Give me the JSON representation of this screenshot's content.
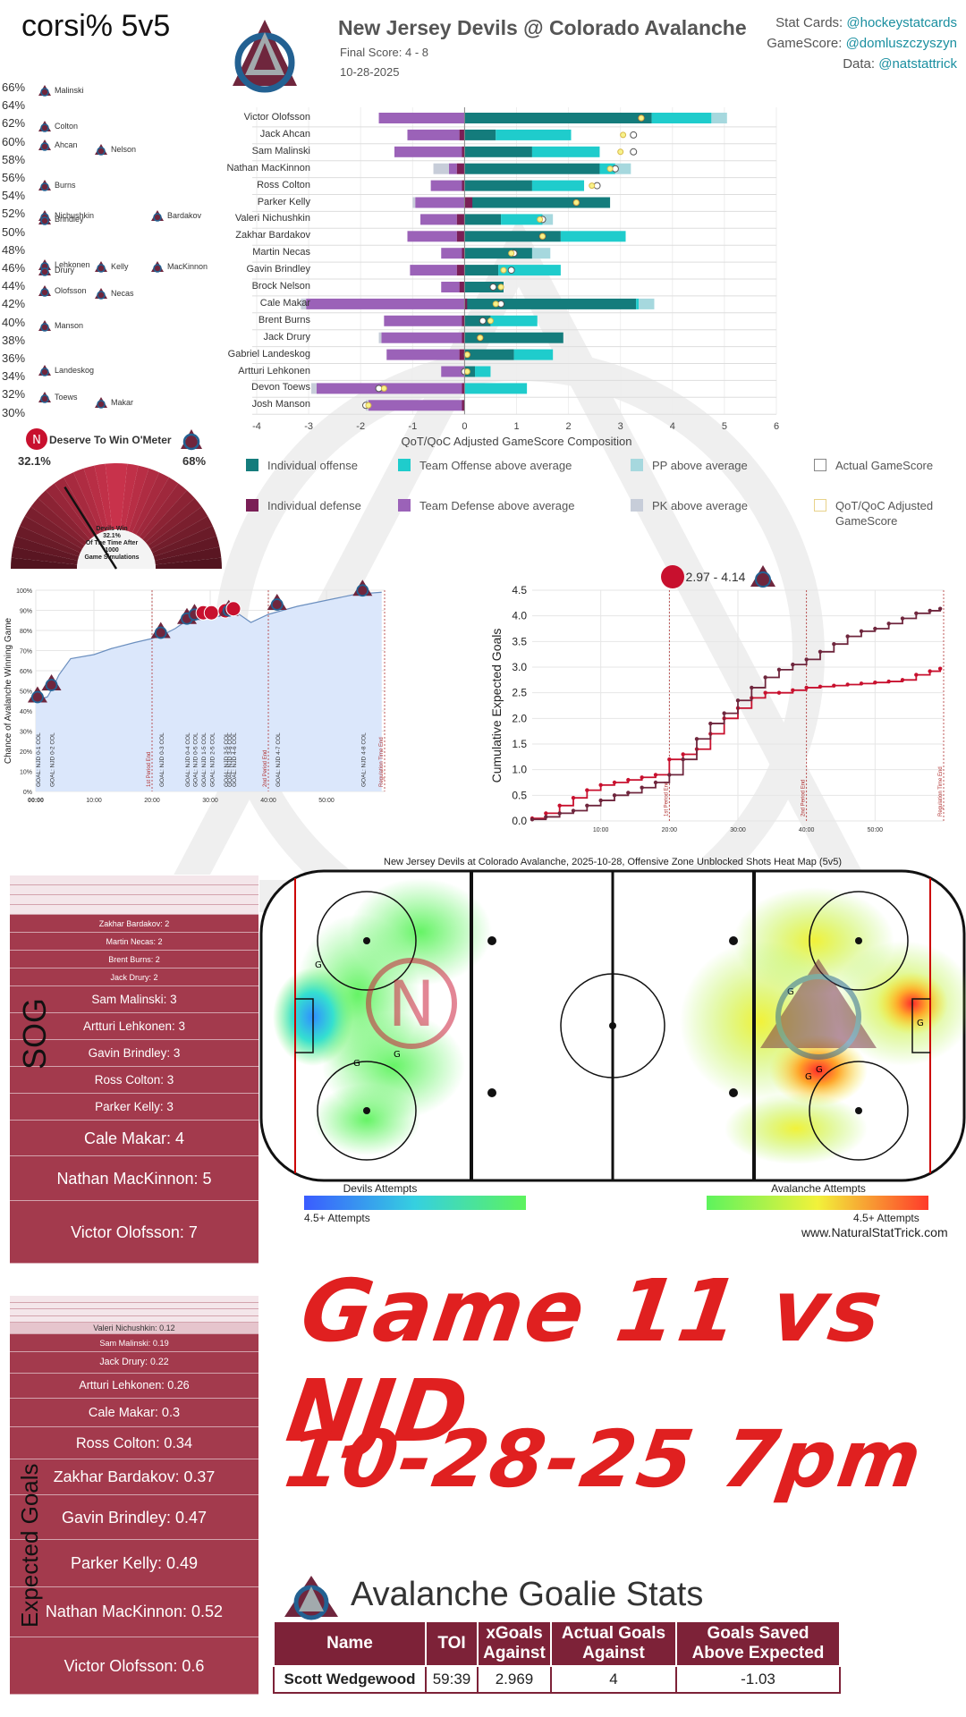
{
  "header": {
    "corsi_title": "corsi% 5v5",
    "game_title": "New Jersey Devils @ Colorado Avalanche",
    "final_score": "Final Score: 4 - 8",
    "date": "10-28-2025",
    "credits": [
      {
        "label": "Stat Cards: ",
        "handle": "@hockeystatcards"
      },
      {
        "label": "GameScore: ",
        "handle": "@domluszczyszyn"
      },
      {
        "label": "Data: ",
        "handle": "@natstattrick"
      }
    ]
  },
  "corsi": {
    "ticks": [
      "66%",
      "64%",
      "62%",
      "60%",
      "58%",
      "56%",
      "54%",
      "52%",
      "50%",
      "48%",
      "46%",
      "44%",
      "42%",
      "40%",
      "38%",
      "36%",
      "34%",
      "32%",
      "30%"
    ],
    "players": [
      {
        "name": "Malinski",
        "pct": 65.5,
        "col": 0
      },
      {
        "name": "Colton",
        "pct": 61.5,
        "col": 0
      },
      {
        "name": "Ahcan",
        "pct": 59.5,
        "col": 0
      },
      {
        "name": "Nelson",
        "pct": 59,
        "col": 1
      },
      {
        "name": "Burns",
        "pct": 55,
        "col": 0
      },
      {
        "name": "Nichushkin",
        "pct": 51.6,
        "col": 0
      },
      {
        "name": "Brindley",
        "pct": 51.2,
        "col": 0
      },
      {
        "name": "Bardakov",
        "pct": 51.6,
        "col": 2
      },
      {
        "name": "Lehkonen",
        "pct": 46.2,
        "col": 0
      },
      {
        "name": "Drury",
        "pct": 45.6,
        "col": 0
      },
      {
        "name": "Kelly",
        "pct": 46,
        "col": 1
      },
      {
        "name": "MacKinnon",
        "pct": 46,
        "col": 2
      },
      {
        "name": "Olofsson",
        "pct": 43.3,
        "col": 0
      },
      {
        "name": "Necas",
        "pct": 43,
        "col": 1
      },
      {
        "name": "Manson",
        "pct": 39.5,
        "col": 0
      },
      {
        "name": "Landeskog",
        "pct": 34.5,
        "col": 0
      },
      {
        "name": "Toews",
        "pct": 31.5,
        "col": 0
      },
      {
        "name": "Makar",
        "pct": 31,
        "col": 1
      }
    ]
  },
  "deserve": {
    "title": "Deserve To Win O'Meter",
    "left_pct": "32.1%",
    "right_pct": "68%",
    "note_lines": [
      "Devils Win",
      "32.1%",
      "Of The Time After",
      "1000",
      "Game Simulations"
    ],
    "needle": 0.321
  },
  "chart_data": [
    {
      "type": "bar",
      "title": "",
      "xlabel": "QoT/QoC Adjusted GameScore Composition",
      "xlim": [
        -4,
        6
      ],
      "xticks": [
        "-4",
        "-3",
        "-2",
        "-1",
        "0",
        "1",
        "2",
        "3",
        "4",
        "5",
        "6"
      ],
      "components": [
        "Individual offense",
        "Team Offense above average",
        "PP above average",
        "Actual GameScore",
        "Individual defense",
        "Team Defense above average",
        "PK above average",
        "QoT/QoC Adjusted GameScore"
      ],
      "colors": {
        "Individual offense": "#147c7c",
        "Team Offense above average": "#1fcccc",
        "PP above average": "#a6d8de",
        "Actual GameScore": "#ffffff",
        "Individual defense": "#7a1f56",
        "Team Defense above average": "#9b62b8",
        "PK above average": "#c7cdd9",
        "QoT/QoC Adjusted GameScore": "#ffffff"
      },
      "players": [
        {
          "name": "Victor Olofsson",
          "ind_off": 3.6,
          "team_off": 1.15,
          "pp": 0.3,
          "ind_def": 0,
          "team_def": -1.65,
          "pk": 0,
          "actual": 3.4,
          "adj": 3.4
        },
        {
          "name": "Jack Ahcan",
          "ind_off": 0.6,
          "team_off": 1.45,
          "pp": 0,
          "ind_def": -0.1,
          "team_def": -1.0,
          "pk": 0,
          "actual": 3.25,
          "adj": 3.05
        },
        {
          "name": "Sam Malinski",
          "ind_off": 1.3,
          "team_off": 1.3,
          "pp": 0,
          "ind_def": -0.05,
          "team_def": -1.3,
          "pk": 0,
          "actual": 3.25,
          "adj": 3.0
        },
        {
          "name": "Nathan MacKinnon",
          "ind_off": 2.6,
          "team_off": 0.3,
          "pp": 0.3,
          "ind_def": -0.15,
          "team_def": -0.15,
          "pk": -0.3,
          "actual": 2.9,
          "adj": 2.8
        },
        {
          "name": "Ross Colton",
          "ind_off": 1.3,
          "team_off": 1.0,
          "pp": 0,
          "ind_def": -0.05,
          "team_def": -0.6,
          "pk": 0,
          "actual": 2.55,
          "adj": 2.45
        },
        {
          "name": "Parker Kelly",
          "ind_off": 2.8,
          "team_off": 0,
          "pp": 0,
          "ind_def": 0.15,
          "team_def": -0.95,
          "pk": -0.05,
          "actual": 2.15,
          "adj": 2.15
        },
        {
          "name": "Valeri Nichushkin",
          "ind_off": 0.7,
          "team_off": 0.8,
          "pp": 0.2,
          "ind_def": -0.15,
          "team_def": -0.7,
          "pk": 0,
          "actual": 1.5,
          "adj": 1.45
        },
        {
          "name": "Zakhar Bardakov",
          "ind_off": 1.85,
          "team_off": 1.25,
          "pp": 0,
          "ind_def": -0.15,
          "team_def": -0.95,
          "pk": 0,
          "actual": 1.5,
          "adj": 1.5
        },
        {
          "name": "Martin Necas",
          "ind_off": 1.3,
          "team_off": 0,
          "pp": 0.35,
          "ind_def": -0.05,
          "team_def": -0.4,
          "pk": 0,
          "actual": 0.95,
          "adj": 0.9
        },
        {
          "name": "Gavin Brindley",
          "ind_off": 0.65,
          "team_off": 1.2,
          "pp": 0,
          "ind_def": -0.15,
          "team_def": -0.9,
          "pk": 0,
          "actual": 0.9,
          "adj": 0.75
        },
        {
          "name": "Brock Nelson",
          "ind_off": 0.75,
          "team_off": 0,
          "pp": 0,
          "ind_def": -0.1,
          "team_def": -0.35,
          "pk": 0,
          "actual": 0.55,
          "adj": 0.7
        },
        {
          "name": "Cale Makar",
          "ind_off": 3.3,
          "team_off": 0.05,
          "pp": 0.3,
          "ind_def": 0.05,
          "team_def": -3.05,
          "pk": -0.1,
          "actual": 0.7,
          "adj": 0.6
        },
        {
          "name": "Brent Burns",
          "ind_off": 0.5,
          "team_off": 0.9,
          "pp": 0,
          "ind_def": -0.05,
          "team_def": -1.5,
          "pk": 0,
          "actual": 0.35,
          "adj": 0.5
        },
        {
          "name": "Jack Drury",
          "ind_off": 1.9,
          "team_off": 0,
          "pp": 0,
          "ind_def": -0.05,
          "team_def": -1.55,
          "pk": -0.05,
          "actual": 0.3,
          "adj": 0.3
        },
        {
          "name": "Gabriel Landeskog",
          "ind_off": 0.95,
          "team_off": 0.75,
          "pp": 0,
          "ind_def": -0.1,
          "team_def": -1.4,
          "pk": 0,
          "actual": 0.05,
          "adj": 0.05
        },
        {
          "name": "Artturi Lehkonen",
          "ind_off": 0.2,
          "team_off": 0.3,
          "pp": 0,
          "ind_def": 0,
          "team_def": -0.45,
          "pk": 0,
          "actual": 0.0,
          "adj": 0.05
        },
        {
          "name": "Devon Toews",
          "ind_off": 0,
          "team_off": 1.2,
          "pp": 0,
          "ind_def": -0.05,
          "team_def": -2.8,
          "pk": -0.1,
          "actual": -1.65,
          "adj": -1.55
        },
        {
          "name": "Josh Manson",
          "ind_off": 0,
          "team_off": 0,
          "pp": 0,
          "ind_def": -0.05,
          "team_def": -1.8,
          "pk": -0.05,
          "actual": -1.9,
          "adj": -1.85
        }
      ]
    },
    {
      "type": "area",
      "title": "",
      "ylabel": "Chance of Avalanche Winning Game",
      "ylim": [
        0,
        100
      ],
      "yticks": [
        "0%",
        "10%",
        "20%",
        "30%",
        "40%",
        "50%",
        "60%",
        "70%",
        "80%",
        "90%",
        "100%"
      ],
      "xticks": [
        "00:00",
        "10:00",
        "20:00",
        "30:00",
        "40:00",
        "50:00"
      ],
      "x": [
        0,
        1,
        2,
        3,
        4,
        6,
        10,
        13,
        17,
        20,
        22,
        24,
        26,
        28,
        30,
        31,
        32,
        33,
        34,
        35,
        37,
        40,
        45,
        50,
        55,
        59.5
      ],
      "y": [
        45,
        46,
        47,
        52,
        58,
        66,
        68,
        71,
        74,
        76,
        78,
        81,
        85,
        87,
        87,
        87,
        87,
        88,
        89,
        88,
        84,
        88,
        92,
        95,
        98,
        99
      ],
      "goals": [
        {
          "t": 0.3,
          "label": "GOAL: NJD 0-1 COL"
        },
        {
          "t": 2.7,
          "label": "GOAL: NJD 0-2 COL"
        },
        {
          "t": 21.5,
          "label": "GOAL: NJD 0-3 COL"
        },
        {
          "t": 26,
          "label": "GOAL: NJD 0-4 COL"
        },
        {
          "t": 27.3,
          "label": "GOAL: NJD 0-5 COL"
        },
        {
          "t": 28.8,
          "label": "GOAL: NJD 1-5 COL"
        },
        {
          "t": 30.2,
          "label": "GOAL: NJD 2-5 COL"
        },
        {
          "t": 32.6,
          "label": "GOAL: NJD 3-5 COL"
        },
        {
          "t": 33.2,
          "label": "GOAL: NJD 3-6 COL"
        },
        {
          "t": 34,
          "label": "GOAL: NJD 4-6 COL"
        },
        {
          "t": 41.5,
          "label": "GOAL: NJD 4-7 COL"
        },
        {
          "t": 56.2,
          "label": "GOAL: NJD 4-8 COL"
        }
      ],
      "periods": [
        {
          "t": 20,
          "label": "1st Period End"
        },
        {
          "t": 40,
          "label": "2nd Period End"
        },
        {
          "t": 60,
          "label": "Regulation Time End"
        }
      ]
    },
    {
      "type": "line",
      "title": "2.97 - 4.14",
      "ylabel": "Cumulative Expected Goals",
      "ylim": [
        0,
        4.5
      ],
      "yticks": [
        "0.0",
        "0.5",
        "1.0",
        "1.5",
        "2.0",
        "2.5",
        "3.0",
        "3.5",
        "4.0",
        "4.5"
      ],
      "xticks": [
        "10:00",
        "20:00",
        "30:00",
        "40:00",
        "50:00"
      ],
      "series": [
        {
          "name": "",
          "color": "#c8102e",
          "x": [
            0,
            2,
            4,
            6,
            8,
            10,
            12,
            14,
            16,
            18,
            20,
            22,
            24,
            26,
            28,
            30,
            32,
            34,
            36,
            38,
            40,
            42,
            44,
            46,
            48,
            50,
            52,
            54,
            56,
            58,
            59.5
          ],
          "y": [
            0.05,
            0.15,
            0.3,
            0.45,
            0.6,
            0.7,
            0.75,
            0.8,
            0.85,
            0.9,
            1.2,
            1.3,
            1.4,
            1.7,
            2.0,
            2.2,
            2.4,
            2.5,
            2.5,
            2.55,
            2.6,
            2.62,
            2.64,
            2.66,
            2.68,
            2.7,
            2.72,
            2.75,
            2.85,
            2.92,
            2.97
          ]
        },
        {
          "name": "",
          "color": "#6f263d",
          "x": [
            0,
            2,
            4,
            6,
            8,
            10,
            12,
            14,
            16,
            18,
            20,
            22,
            24,
            26,
            28,
            30,
            32,
            34,
            36,
            38,
            40,
            42,
            44,
            46,
            48,
            50,
            52,
            54,
            56,
            58,
            59.5
          ],
          "y": [
            0.03,
            0.08,
            0.15,
            0.2,
            0.3,
            0.4,
            0.5,
            0.55,
            0.65,
            0.75,
            0.9,
            1.2,
            1.6,
            1.9,
            2.1,
            2.35,
            2.6,
            2.8,
            2.95,
            3.05,
            3.15,
            3.3,
            3.45,
            3.6,
            3.7,
            3.75,
            3.85,
            3.95,
            4.05,
            4.1,
            4.14
          ]
        }
      ],
      "periods": [
        {
          "t": 20,
          "label": "1st Period End"
        },
        {
          "t": 40,
          "label": "2nd Period End"
        },
        {
          "t": 60,
          "label": "Regulation Time End"
        }
      ]
    },
    {
      "type": "heatmap",
      "title": "New Jersey Devils at Colorado Avalanche, 2025-10-28, Offensive Zone Unblocked Shots Heat Map (5v5)",
      "legend_left": "Devils Attempts",
      "legend_right": "Avalanche Attempts",
      "scale_left": "4.5+ Attempts",
      "scale_right": "4.5+ Attempts",
      "source": "www.NaturalStatTrick.com"
    },
    {
      "type": "bar",
      "title": "SOG",
      "categories": [
        "Zakhar Bardakov: 2",
        "Martin Necas: 2",
        "Brent Burns: 2",
        "Jack Drury: 2",
        "Sam Malinski: 3",
        "Artturi Lehkonen: 3",
        "Gavin Brindley: 3",
        "Ross Colton: 3",
        "Parker Kelly: 3",
        "Cale Makar: 4",
        "Nathan MacKinnon: 5",
        "Victor Olofsson: 7"
      ],
      "values": [
        2,
        2,
        2,
        2,
        3,
        3,
        3,
        3,
        3,
        4,
        5,
        7
      ]
    },
    {
      "type": "bar",
      "title": "Expected Goals",
      "categories": [
        "Valeri Nichushkin: 0.12",
        "Sam Malinski: 0.19",
        "Jack Drury: 0.22",
        "Artturi Lehkonen: 0.26",
        "Cale Makar: 0.3",
        "Ross Colton: 0.34",
        "Zakhar Bardakov: 0.37",
        "Gavin Brindley: 0.47",
        "Parker Kelly: 0.49",
        "Nathan MacKinnon: 0.52",
        "Victor Olofsson: 0.6"
      ],
      "values": [
        0.12,
        0.19,
        0.22,
        0.26,
        0.3,
        0.34,
        0.37,
        0.47,
        0.49,
        0.52,
        0.6
      ]
    }
  ],
  "handwriting": {
    "line1": "Game 11 vs NJD",
    "line2": "10-28-25  7pm"
  },
  "goalie": {
    "title": "Avalanche Goalie Stats",
    "headers": [
      "Name",
      "TOI",
      "xGoals Against",
      "Actual Goals Against",
      "Goals Saved Above Expected"
    ],
    "rows": [
      [
        "Scott Wedgewood",
        "59:39",
        "2.969",
        "4",
        "-1.03"
      ]
    ]
  }
}
